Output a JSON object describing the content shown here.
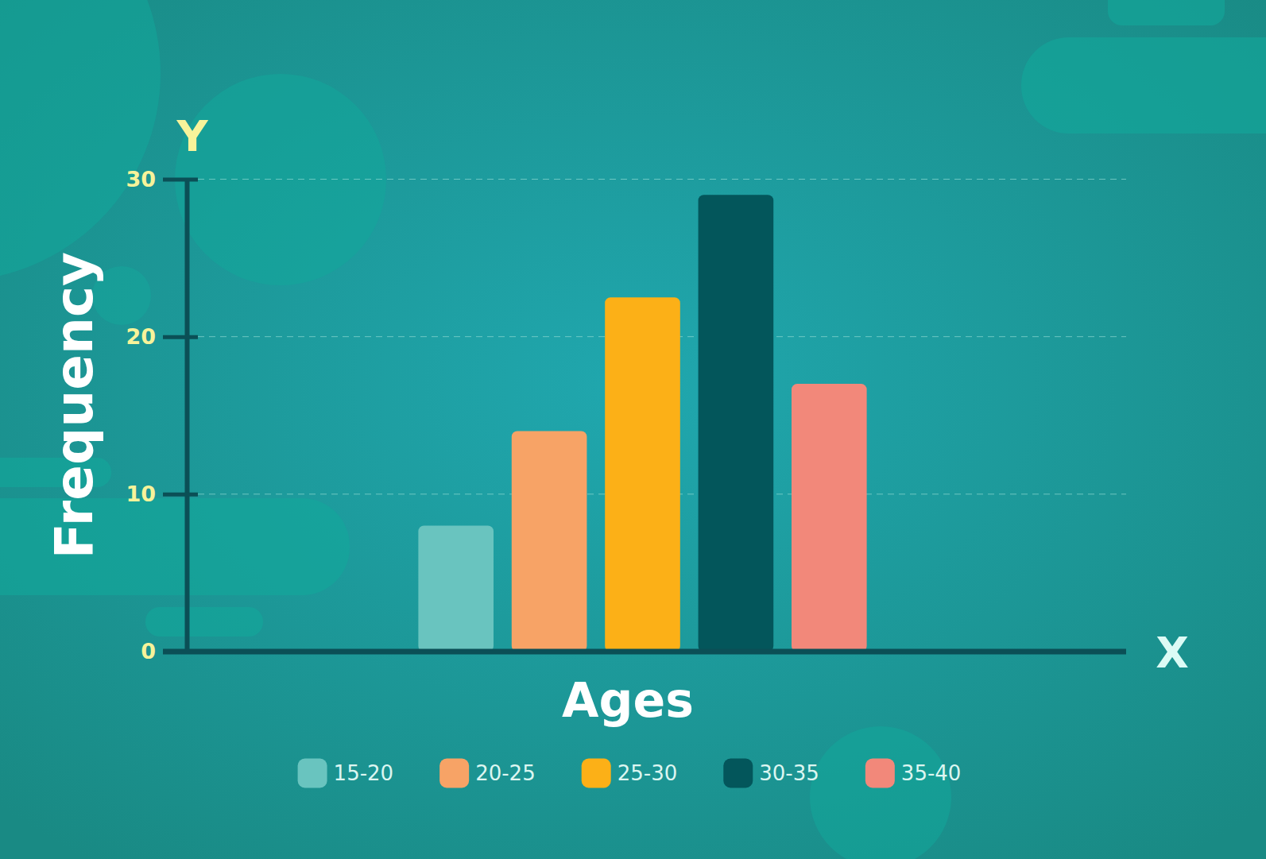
{
  "chart_data": {
    "type": "bar",
    "x_label": "Ages",
    "y_label": "Frequency",
    "annotations": [
      "Y",
      "X"
    ],
    "categories": [
      "15-20",
      "20-25",
      "25-30",
      "30-35",
      "35-40"
    ],
    "values": [
      8,
      14,
      22.5,
      29,
      17
    ],
    "colors": [
      "#69c4bf",
      "#f7a366",
      "#fcb017",
      "#03565b",
      "#f2887a"
    ],
    "ylim": [
      0,
      30
    ],
    "yticks": [
      0,
      10,
      20,
      30
    ],
    "grid": true,
    "tick_labels": "y",
    "legend": "bottom"
  }
}
